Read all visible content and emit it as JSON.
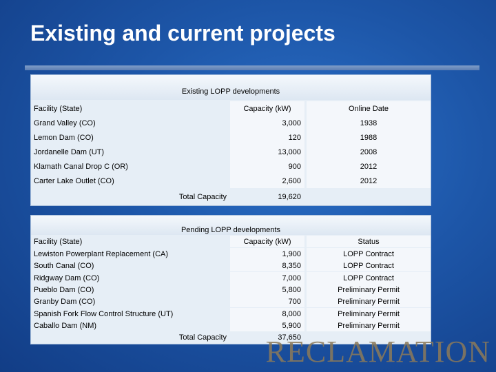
{
  "slide": {
    "title": "Existing and current projects",
    "logo_text": "RECLAMATION"
  },
  "existing": {
    "caption": "Existing LOPP developments",
    "headers": {
      "facility": "Facility (State)",
      "capacity": "Capacity (kW)",
      "date": "Online Date"
    },
    "rows": [
      {
        "facility": "Grand Valley (CO)",
        "capacity": "3,000",
        "date": "1938"
      },
      {
        "facility": "Lemon Dam (CO)",
        "capacity": "120",
        "date": "1988"
      },
      {
        "facility": "Jordanelle Dam (UT)",
        "capacity": "13,000",
        "date": "2008"
      },
      {
        "facility": "Klamath Canal Drop C (OR)",
        "capacity": "900",
        "date": "2012"
      },
      {
        "facility": "Carter Lake Outlet (CO)",
        "capacity": "2,600",
        "date": "2012"
      }
    ],
    "total_label": "Total Capacity",
    "total_value": "19,620"
  },
  "pending": {
    "caption": "Pending LOPP developments",
    "headers": {
      "facility": "Facility (State)",
      "capacity": "Capacity (kW)",
      "status": "Status"
    },
    "rows": [
      {
        "facility": "Lewiston Powerplant Replacement (CA)",
        "capacity": "1,900",
        "status": "LOPP Contract"
      },
      {
        "facility": "South Canal (CO)",
        "capacity": "8,350",
        "status": "LOPP Contract"
      },
      {
        "facility": "Ridgway Dam (CO)",
        "capacity": "7,000",
        "status": "LOPP Contract"
      },
      {
        "facility": "Pueblo Dam (CO)",
        "capacity": "5,800",
        "status": "Preliminary Permit"
      },
      {
        "facility": "Granby Dam (CO)",
        "capacity": "700",
        "status": "Preliminary Permit"
      },
      {
        "facility": "Spanish Fork Flow Control Structure (UT)",
        "capacity": "8,000",
        "status": "Preliminary Permit"
      },
      {
        "facility": "Caballo Dam (NM)",
        "capacity": "5,900",
        "status": "Preliminary Permit"
      }
    ],
    "total_label": "Total Capacity",
    "total_value": "37,650"
  }
}
